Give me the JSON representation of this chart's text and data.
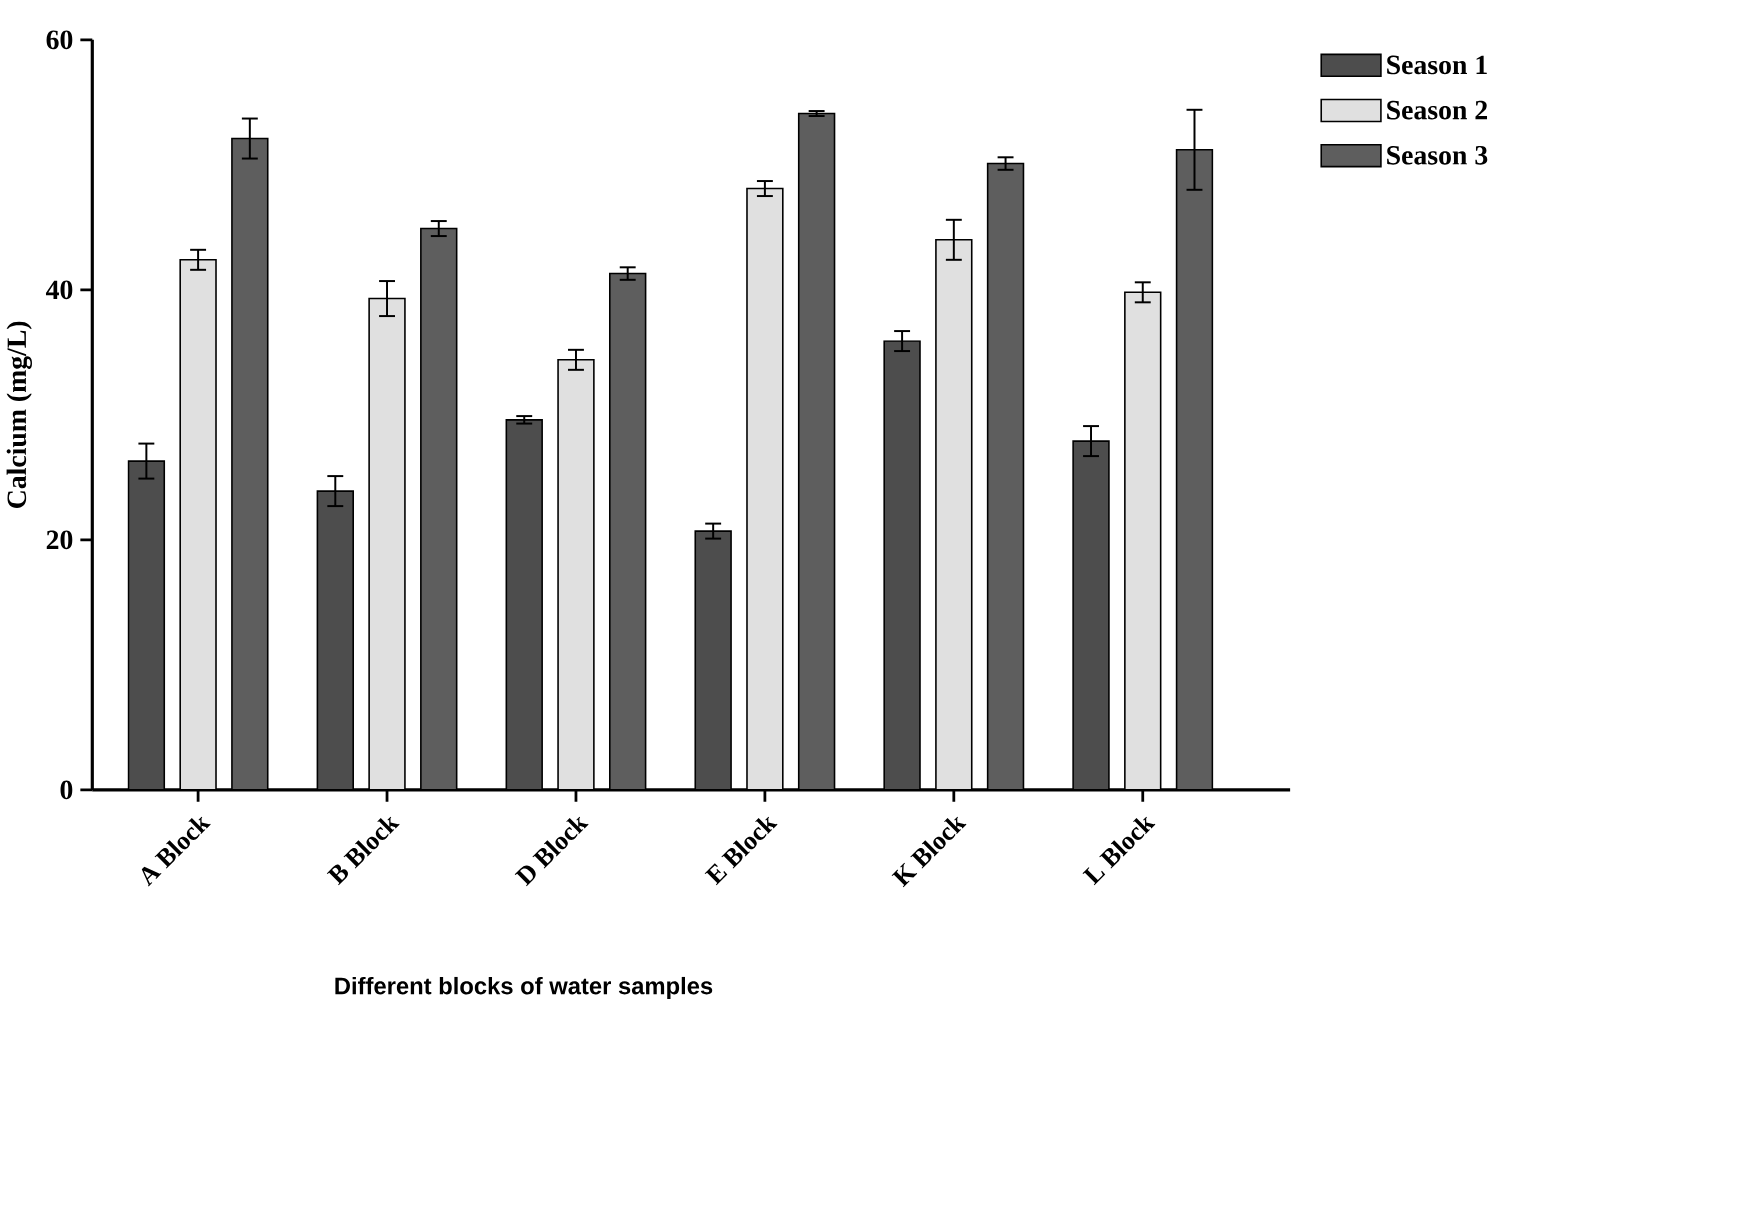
{
  "chart_data": {
    "type": "bar",
    "xlabel": "Different blocks of water samples",
    "ylabel": "Calcium (mg/L)",
    "categories": [
      "A Block",
      "B Block",
      "D Block",
      "E Block",
      "K Block",
      "L Block"
    ],
    "series": [
      {
        "name": "Season 1",
        "color": "#4d4d4d",
        "values": [
          26.3,
          23.9,
          29.6,
          20.7,
          35.9,
          27.9
        ],
        "errors": [
          1.4,
          1.2,
          0.3,
          0.6,
          0.8,
          1.2
        ]
      },
      {
        "name": "Season 2",
        "color": "#e0e0e0",
        "values": [
          42.4,
          39.3,
          34.4,
          48.1,
          44.0,
          39.8
        ],
        "errors": [
          0.8,
          1.4,
          0.8,
          0.6,
          1.6,
          0.8
        ]
      },
      {
        "name": "Season 3",
        "color": "#5e5e5e",
        "values": [
          52.1,
          44.9,
          41.3,
          54.1,
          50.1,
          51.2
        ],
        "errors": [
          1.6,
          0.6,
          0.5,
          0.2,
          0.5,
          3.2
        ]
      }
    ],
    "ylim": [
      0,
      60
    ],
    "yticks": [
      0,
      20,
      40,
      60
    ],
    "grid": false,
    "legend": "top right"
  }
}
